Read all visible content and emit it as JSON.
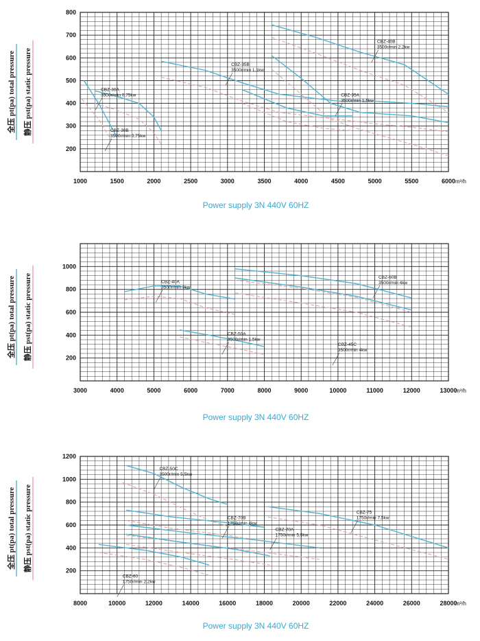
{
  "colors": {
    "total": "#4fb3d1",
    "static": "#e6a0a8",
    "grid": "#222222",
    "footer": "#3ca6cf"
  },
  "chart_data": [
    {
      "type": "line",
      "y_label_total": "全压 pt(pa) total pressure",
      "y_label_static": "静压 pst(pa) static pressure",
      "x_unit": "m³/h",
      "footer": "Power supply   3N 440V  60HZ",
      "xlim": [
        1000,
        6000
      ],
      "ylim": [
        100,
        800
      ],
      "x_ticks": [
        1000,
        1500,
        2000,
        2500,
        3000,
        3500,
        4000,
        4500,
        5000,
        5500,
        6000
      ],
      "y_ticks": [
        200,
        300,
        400,
        500,
        600,
        700,
        800
      ],
      "series": [
        {
          "kind": "total",
          "points": [
            [
              1050,
              500
            ],
            [
              1250,
              400
            ],
            [
              1500,
              250
            ]
          ]
        },
        {
          "kind": "static",
          "points": [
            [
              1020,
              420
            ],
            [
              1250,
              330
            ],
            [
              1420,
              240
            ]
          ]
        },
        {
          "kind": "total",
          "points": [
            [
              1200,
              455
            ],
            [
              1500,
              430
            ],
            [
              1800,
              400
            ],
            [
              2000,
              340
            ],
            [
              2100,
              280
            ]
          ]
        },
        {
          "kind": "static",
          "points": [
            [
              1200,
              400
            ],
            [
              1500,
              370
            ],
            [
              1800,
              330
            ],
            [
              2000,
              270
            ],
            [
              2100,
              220
            ]
          ]
        },
        {
          "kind": "total",
          "points": [
            [
              2100,
              585
            ],
            [
              2700,
              545
            ],
            [
              3200,
              490
            ],
            [
              3700,
              440
            ],
            [
              4500,
              410
            ],
            [
              5000,
              410
            ],
            [
              5500,
              400
            ],
            [
              6000,
              385
            ]
          ]
        },
        {
          "kind": "static",
          "points": [
            [
              2100,
              515
            ],
            [
              2700,
              470
            ],
            [
              3200,
              410
            ],
            [
              3700,
              360
            ],
            [
              4500,
              330
            ],
            [
              5000,
              310
            ],
            [
              5500,
              295
            ],
            [
              6000,
              275
            ]
          ]
        },
        {
          "kind": "total",
          "points": [
            [
              3200,
              460
            ],
            [
              3800,
              380
            ],
            [
              4300,
              345
            ],
            [
              4700,
              345
            ]
          ]
        },
        {
          "kind": "static",
          "points": [
            [
              3200,
              400
            ],
            [
              3800,
              320
            ],
            [
              4300,
              290
            ],
            [
              4700,
              280
            ]
          ]
        },
        {
          "kind": "total",
          "points": [
            [
              3600,
              610
            ],
            [
              4000,
              510
            ],
            [
              4400,
              400
            ],
            [
              4800,
              360
            ],
            [
              5500,
              345
            ],
            [
              6000,
              315
            ]
          ]
        },
        {
          "kind": "static",
          "points": [
            [
              3600,
              550
            ],
            [
              4000,
              440
            ],
            [
              4400,
              330
            ],
            [
              4800,
              285
            ],
            [
              5500,
              220
            ],
            [
              6000,
              170
            ]
          ]
        },
        {
          "kind": "total",
          "points": [
            [
              3600,
              745
            ],
            [
              4200,
              690
            ],
            [
              4800,
              625
            ],
            [
              5400,
              570
            ],
            [
              6000,
              440
            ]
          ]
        },
        {
          "kind": "static",
          "points": [
            [
              3600,
              690
            ],
            [
              4200,
              620
            ],
            [
              4800,
              545
            ],
            [
              5400,
              480
            ],
            [
              6000,
              360
            ]
          ]
        }
      ],
      "annotations": [
        {
          "text": "CBZ-30A",
          "sub": "3500r/min 0,75kw",
          "x": 1280,
          "y": 455
        },
        {
          "text": "CBZ-30B",
          "sub": "3500r/min 0,75kw",
          "x": 1410,
          "y": 275
        },
        {
          "text": "CBZ-35B",
          "sub": "3500r/min 1,1kw",
          "x": 3050,
          "y": 565
        },
        {
          "text": "CBZ-35A",
          "sub": "3500r/min 1,5kw",
          "x": 4540,
          "y": 430
        },
        {
          "text": "CBZ-40B",
          "sub": "3500r/min 2,2kw",
          "x": 5030,
          "y": 665
        }
      ]
    },
    {
      "type": "line",
      "y_label_total": "全压 pt(pa) total pressure",
      "y_label_static": "静压 pst(pa) static pressure",
      "x_unit": "m³/h",
      "footer": "Power supply   3N 440V  60HZ",
      "xlim": [
        3000,
        13000
      ],
      "ylim": [
        0,
        1200
      ],
      "x_ticks": [
        3000,
        4000,
        5000,
        6000,
        7000,
        8000,
        9000,
        10000,
        11000,
        12000,
        13000
      ],
      "y_ticks": [
        200,
        400,
        600,
        800,
        1000
      ],
      "series": [
        {
          "kind": "total",
          "points": [
            [
              4200,
              780
            ],
            [
              5000,
              830
            ],
            [
              5700,
              830
            ],
            [
              6400,
              760
            ],
            [
              7200,
              715
            ]
          ]
        },
        {
          "kind": "static",
          "points": [
            [
              4200,
              710
            ],
            [
              5000,
              740
            ],
            [
              5700,
              720
            ],
            [
              6400,
              640
            ],
            [
              7200,
              580
            ]
          ]
        },
        {
          "kind": "total",
          "points": [
            [
              5700,
              445
            ],
            [
              6500,
              400
            ],
            [
              7300,
              350
            ],
            [
              8000,
              300
            ]
          ]
        },
        {
          "kind": "static",
          "points": [
            [
              5700,
              385
            ],
            [
              6500,
              330
            ],
            [
              7300,
              280
            ],
            [
              8000,
              230
            ]
          ]
        },
        {
          "kind": "total",
          "points": [
            [
              7200,
              980
            ],
            [
              9000,
              920
            ],
            [
              10500,
              850
            ],
            [
              12000,
              725
            ]
          ]
        },
        {
          "kind": "static",
          "points": [
            [
              7200,
              880
            ],
            [
              9000,
              810
            ],
            [
              10500,
              730
            ],
            [
              12000,
              600
            ]
          ]
        },
        {
          "kind": "total",
          "points": [
            [
              7200,
              900
            ],
            [
              9000,
              820
            ],
            [
              10500,
              740
            ],
            [
              12000,
              620
            ]
          ]
        },
        {
          "kind": "static",
          "points": [
            [
              7200,
              770
            ],
            [
              9000,
              680
            ],
            [
              10500,
              600
            ],
            [
              12000,
              470
            ]
          ]
        }
      ],
      "annotations": [
        {
          "text": "CBZ-40A",
          "sub": "3500r/min 3kw",
          "x": 5200,
          "y": 855
        },
        {
          "text": "CBZ-50A",
          "sub": "3500r/min 1,5kw",
          "x": 7000,
          "y": 400
        },
        {
          "text": "CBZ-60B",
          "sub": "3500r/min 4kw",
          "x": 11100,
          "y": 895
        },
        {
          "text": "CBZ-45C",
          "sub": "3500r/min 4kw",
          "x": 10000,
          "y": 305
        }
      ]
    },
    {
      "type": "line",
      "y_label_total": "全压 pt(pa) total pressure",
      "y_label_static": "静压 pst(pa) static pressure",
      "x_unit": "m³/h",
      "footer": "Power supply   3N 440V  60HZ",
      "xlim": [
        8000,
        28000
      ],
      "ylim": [
        0,
        1200
      ],
      "x_ticks": [
        8000,
        10000,
        12000,
        14000,
        16000,
        18000,
        20000,
        22000,
        24000,
        26000,
        28000
      ],
      "y_ticks": [
        200,
        400,
        600,
        800,
        1000,
        1200
      ],
      "series": [
        {
          "kind": "total",
          "points": [
            [
              10500,
              1120
            ],
            [
              12000,
              1050
            ],
            [
              13500,
              930
            ],
            [
              15000,
              830
            ],
            [
              16000,
              780
            ]
          ]
        },
        {
          "kind": "static",
          "points": [
            [
              10300,
              970
            ],
            [
              12000,
              870
            ],
            [
              13500,
              750
            ],
            [
              15000,
              640
            ],
            [
              16000,
              590
            ]
          ]
        },
        {
          "kind": "total",
          "points": [
            [
              10500,
              730
            ],
            [
              13000,
              670
            ],
            [
              16000,
              620
            ],
            [
              18000,
              580
            ]
          ]
        },
        {
          "kind": "static",
          "points": [
            [
              10500,
              640
            ],
            [
              13000,
              570
            ],
            [
              16000,
              510
            ],
            [
              18000,
              460
            ]
          ]
        },
        {
          "kind": "total",
          "points": [
            [
              10500,
              600
            ],
            [
              14000,
              530
            ],
            [
              17500,
              470
            ],
            [
              21000,
              400
            ]
          ]
        },
        {
          "kind": "static",
          "points": [
            [
              10500,
              510
            ],
            [
              14000,
              440
            ],
            [
              17500,
              370
            ],
            [
              21000,
              300
            ]
          ]
        },
        {
          "kind": "total",
          "points": [
            [
              10500,
              520
            ],
            [
              13500,
              450
            ],
            [
              16500,
              385
            ],
            [
              18300,
              330
            ]
          ]
        },
        {
          "kind": "static",
          "points": [
            [
              10500,
              430
            ],
            [
              13500,
              360
            ],
            [
              16500,
              295
            ],
            [
              18300,
              250
            ]
          ]
        },
        {
          "kind": "total",
          "points": [
            [
              18200,
              760
            ],
            [
              21000,
              700
            ],
            [
              24000,
              600
            ],
            [
              28000,
              400
            ]
          ]
        },
        {
          "kind": "static",
          "points": [
            [
              18200,
              670
            ],
            [
              21000,
              600
            ],
            [
              24000,
              470
            ],
            [
              28000,
              300
            ]
          ]
        },
        {
          "kind": "total",
          "points": [
            [
              9000,
              430
            ],
            [
              11500,
              380
            ],
            [
              13500,
              320
            ],
            [
              15000,
              250
            ]
          ]
        },
        {
          "kind": "static",
          "points": [
            [
              9000,
              360
            ],
            [
              11500,
              300
            ],
            [
              13500,
              230
            ],
            [
              15000,
              160
            ]
          ]
        }
      ],
      "annotations": [
        {
          "text": "CBZ-50C",
          "sub": "3500r/min 5,5kw",
          "x": 12300,
          "y": 1080
        },
        {
          "text": "CBZ-70B",
          "sub": "1750r/min 4kw",
          "x": 16000,
          "y": 650
        },
        {
          "text": "CBZ-70A",
          "sub": "1750r/min 5,5kw",
          "x": 18600,
          "y": 550
        },
        {
          "text": "CBZ-75",
          "sub": "1750r/min 7,5kw",
          "x": 23000,
          "y": 700
        },
        {
          "text": "CBZ-60",
          "sub": "1750r/min 2,2kw",
          "x": 10300,
          "y": 140
        }
      ]
    }
  ]
}
